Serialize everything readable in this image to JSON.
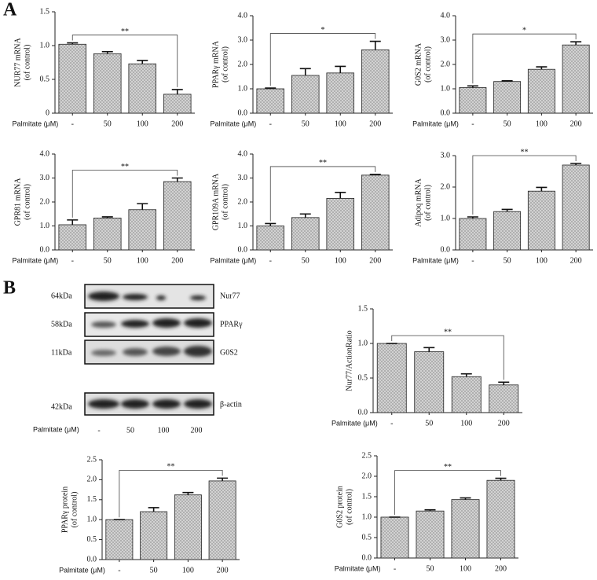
{
  "panels": [
    "A",
    "B"
  ],
  "blot": {
    "markers": [
      "64kDa",
      "58kDa",
      "11kDa",
      "42kDa"
    ],
    "proteins": [
      "Nur77",
      "PPARγ",
      "G0S2",
      "β-actin"
    ],
    "xlabel": "Palmitate (μM)",
    "lanes": [
      "-",
      "50",
      "100",
      "200"
    ]
  },
  "chart_data": [
    {
      "type": "bar",
      "ylabel": [
        "NUR77 mRNA",
        "(of control)"
      ],
      "xlabel": "Palmitate (μM)",
      "categories": [
        "-",
        "50",
        "100",
        "200"
      ],
      "values": [
        1.02,
        0.88,
        0.73,
        0.28
      ],
      "errors": [
        0.02,
        0.03,
        0.05,
        0.07
      ],
      "color": "#a6a6a6",
      "ylim": [
        0,
        1.5
      ],
      "yticks": [
        0,
        0.5,
        {
          "value": 1,
          "label": "1.0"
        },
        1.5
      ],
      "significance": "**"
    },
    {
      "type": "bar",
      "ylabel": [
        "PPARγ mRNA",
        "(of control)"
      ],
      "xlabel": "Palmitate (μM)",
      "categories": [
        "-",
        "50",
        "100",
        "200"
      ],
      "values": [
        1.0,
        1.55,
        1.65,
        2.6
      ],
      "errors": [
        0.03,
        0.28,
        0.27,
        0.35
      ],
      "color": "#a6a6a6",
      "ylim": [
        0,
        4
      ],
      "yticks": [
        {
          "value": 0,
          "label": "0.0"
        },
        {
          "value": 1,
          "label": "1.0"
        },
        {
          "value": 2,
          "label": "2.0"
        },
        {
          "value": 3,
          "label": "3.0"
        },
        {
          "value": 4,
          "label": "4.0"
        }
      ],
      "significance": "*"
    },
    {
      "type": "bar",
      "ylabel": [
        "G0S2 mRNA",
        "(of control)"
      ],
      "xlabel": "Palmitate (μM)",
      "categories": [
        "-",
        "50",
        "100",
        "200"
      ],
      "values": [
        1.05,
        1.3,
        1.8,
        2.8
      ],
      "errors": [
        0.07,
        0.03,
        0.1,
        0.13
      ],
      "color": "#a6a6a6",
      "ylim": [
        0,
        4
      ],
      "yticks": [
        {
          "value": 0,
          "label": "0.0"
        },
        {
          "value": 1,
          "label": "1.0"
        },
        {
          "value": 2,
          "label": "2.0"
        },
        {
          "value": 3,
          "label": "3.0"
        },
        {
          "value": 4,
          "label": "4.0"
        }
      ],
      "significance": "*"
    },
    {
      "type": "bar",
      "ylabel": [
        "GPR81 mRNA",
        "(of control)"
      ],
      "xlabel": "Palmitate (μM)",
      "categories": [
        "-",
        "50",
        "100",
        "200"
      ],
      "values": [
        1.05,
        1.33,
        1.68,
        2.85
      ],
      "errors": [
        0.2,
        0.05,
        0.25,
        0.15
      ],
      "color": "#a6a6a6",
      "ylim": [
        0,
        4
      ],
      "yticks": [
        {
          "value": 0,
          "label": "0.0"
        },
        {
          "value": 1,
          "label": "1.0"
        },
        {
          "value": 2,
          "label": "2.0"
        },
        {
          "value": 3,
          "label": "3.0"
        },
        {
          "value": 4,
          "label": "4.0"
        }
      ],
      "significance": "**"
    },
    {
      "type": "bar",
      "ylabel": [
        "GPR109A mRNA",
        "(of control)"
      ],
      "xlabel": "Palmitate (μM)",
      "categories": [
        "-",
        "50",
        "100",
        "200"
      ],
      "values": [
        1.0,
        1.35,
        2.15,
        3.12
      ],
      "errors": [
        0.1,
        0.15,
        0.25,
        0.03
      ],
      "color": "#a6a6a6",
      "ylim": [
        0,
        4
      ],
      "yticks": [
        {
          "value": 0,
          "label": "0.0"
        },
        {
          "value": 1,
          "label": "1.0"
        },
        {
          "value": 2,
          "label": "2.0"
        },
        {
          "value": 3,
          "label": "3.0"
        },
        {
          "value": 4,
          "label": "4.0"
        }
      ],
      "significance": "**"
    },
    {
      "type": "bar",
      "ylabel": [
        "Adipoq mRNA",
        "(of control)"
      ],
      "xlabel": "Palmitate (μM)",
      "categories": [
        "-",
        "50",
        "100",
        "200"
      ],
      "values": [
        1.0,
        1.22,
        1.87,
        2.7
      ],
      "errors": [
        0.05,
        0.07,
        0.12,
        0.05
      ],
      "color": "#a6a6a6",
      "ylim": [
        0,
        3
      ],
      "yticks": [
        {
          "value": 0,
          "label": "0.0"
        },
        {
          "value": 1,
          "label": "1.0"
        },
        {
          "value": 2,
          "label": "2.0"
        },
        {
          "value": 3,
          "label": "3.0"
        }
      ],
      "significance": "**"
    },
    {
      "type": "bar",
      "ylabel": [
        "Nur77/ActionRatio"
      ],
      "xlabel": "Palmitate (μM)",
      "categories": [
        "-",
        "50",
        "100",
        "200"
      ],
      "values": [
        1.0,
        0.88,
        0.52,
        0.4
      ],
      "errors": [
        0,
        0.06,
        0.04,
        0.04
      ],
      "color": "#a6a6a6",
      "ylim": [
        0,
        1.5
      ],
      "yticks": [
        {
          "value": 0,
          "label": "0.0"
        },
        0.5,
        {
          "value": 1,
          "label": "1.0"
        },
        1.5
      ],
      "significance": "**"
    },
    {
      "type": "bar",
      "ylabel": [
        "PPARγ protein",
        "(of control)"
      ],
      "xlabel": "Palmitate (μM)",
      "categories": [
        "-",
        "50",
        "100",
        "200"
      ],
      "values": [
        1.0,
        1.2,
        1.62,
        1.97
      ],
      "errors": [
        0,
        0.1,
        0.06,
        0.07
      ],
      "color": "#a6a6a6",
      "ylim": [
        0,
        2.5
      ],
      "yticks": [
        {
          "value": 0,
          "label": "0.0"
        },
        0.5,
        {
          "value": 1,
          "label": "1.0"
        },
        1.5,
        {
          "value": 2,
          "label": "2.0"
        },
        2.5
      ],
      "significance": "**"
    },
    {
      "type": "bar",
      "ylabel": [
        "G0S2 protein",
        "(of control)"
      ],
      "xlabel": "Palmitate (μM)",
      "categories": [
        "-",
        "50",
        "100",
        "200"
      ],
      "values": [
        1.0,
        1.15,
        1.43,
        1.9
      ],
      "errors": [
        0,
        0.03,
        0.04,
        0.05
      ],
      "color": "#a6a6a6",
      "ylim": [
        0,
        2.5
      ],
      "yticks": [
        {
          "value": 0,
          "label": "0.0"
        },
        0.5,
        {
          "value": 1,
          "label": "1.0"
        },
        1.5,
        {
          "value": 2,
          "label": "2.0"
        },
        2.5
      ],
      "significance": "**"
    }
  ]
}
